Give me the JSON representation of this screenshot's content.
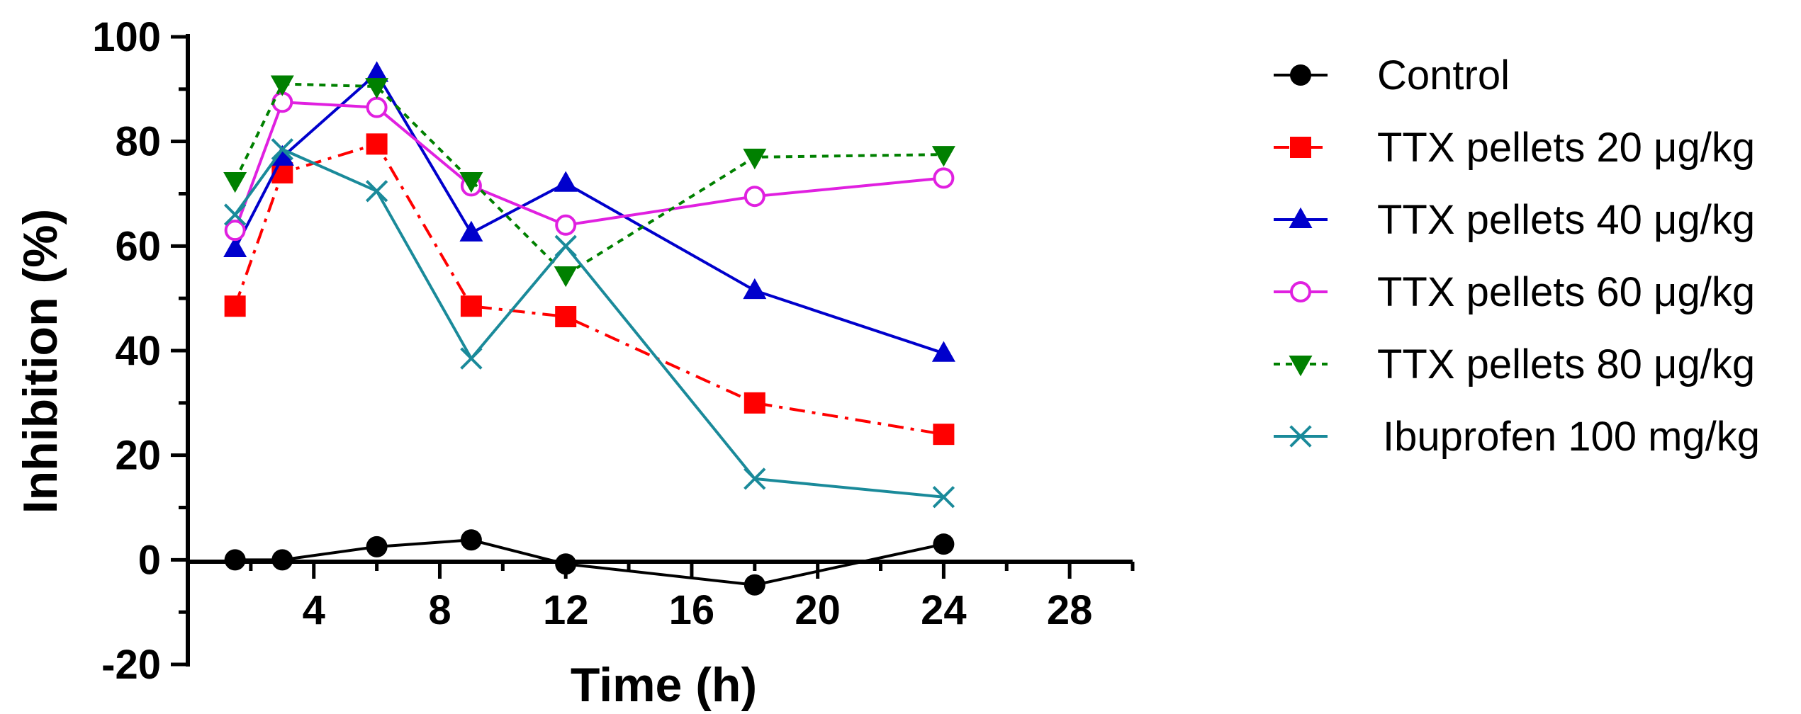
{
  "chart_data": {
    "type": "line",
    "xlabel": "Time (h)",
    "ylabel": "Inhibition (%)",
    "xlim": [
      0,
      30
    ],
    "ylim": [
      -20,
      100
    ],
    "xticks": [
      4,
      8,
      12,
      16,
      20,
      24,
      28
    ],
    "yticks": [
      -20,
      0,
      20,
      40,
      60,
      80,
      100
    ],
    "grid": false,
    "legend_position": "right",
    "series": [
      {
        "name": "Control",
        "color": "#000000",
        "line": "solid",
        "marker": "circle-filled",
        "x": [
          1.5,
          3,
          6,
          9,
          12,
          18,
          24
        ],
        "values": [
          0,
          0,
          2.5,
          3.8,
          -0.8,
          -4.8,
          3
        ]
      },
      {
        "name": "TTX pellets 20 μg/kg",
        "color": "#ff0000",
        "line": "dashdot",
        "marker": "square-filled",
        "x": [
          1.5,
          3,
          6,
          9,
          12,
          18,
          24
        ],
        "values": [
          48.5,
          74,
          79.5,
          48.5,
          46.5,
          30,
          24
        ]
      },
      {
        "name": "TTX pellets 40 μg/kg",
        "color": "#0000cc",
        "line": "solid",
        "marker": "triangle-up-filled",
        "x": [
          1.5,
          3,
          6,
          9,
          12,
          18,
          24
        ],
        "values": [
          59.5,
          77,
          93,
          62.5,
          72,
          51.5,
          39.5
        ]
      },
      {
        "name": "TTX pellets 60 μg/kg",
        "color": "#e020e0",
        "line": "solid",
        "marker": "circle-open",
        "x": [
          1.5,
          3,
          6,
          9,
          12,
          18,
          24
        ],
        "values": [
          63,
          87.5,
          86.5,
          71.5,
          64,
          69.5,
          73
        ]
      },
      {
        "name": "TTX pellets 80 μg/kg",
        "color": "#008000",
        "line": "dotted",
        "marker": "triangle-down-filled",
        "x": [
          1.5,
          3,
          6,
          9,
          12,
          18,
          24
        ],
        "values": [
          72.5,
          91,
          90.5,
          72.5,
          54.5,
          77,
          77.5
        ]
      },
      {
        "name": "Ibuprofen 100 mg/kg",
        "color": "#1a8a9a",
        "line": "solid",
        "marker": "x",
        "x": [
          1.5,
          3,
          6,
          9,
          12,
          18,
          24
        ],
        "values": [
          66,
          78.5,
          70.5,
          38.5,
          60,
          15.5,
          12
        ]
      }
    ]
  }
}
